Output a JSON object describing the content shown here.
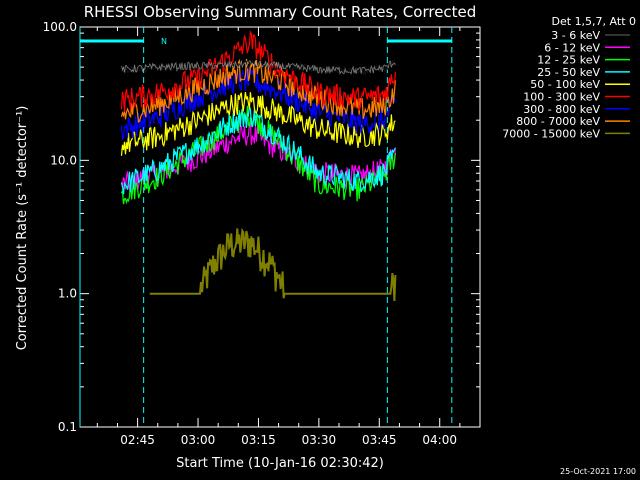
{
  "page": {
    "title": "RHESSI Observing Summary Count Rates, Corrected",
    "xlabel": "Start Time (10-Jan-16 02:30:42)",
    "ylabel": "Corrected Count Rate (s⁻¹ detector⁻¹)",
    "footer_timestamp": "25-Oct-2021 17:00",
    "marker_label": "N",
    "legend_header": "Det 1,5,7, Att 0"
  },
  "chart_data": {
    "type": "line",
    "title": "RHESSI Observing Summary Count Rates, Corrected",
    "xlabel": "Start Time (10-Jan-16 02:30:42)",
    "ylabel": "Corrected Count Rate (s⁻¹ detector⁻¹)",
    "y_scale": "log",
    "ylim": [
      0.1,
      100.0
    ],
    "y_ticks": [
      "0.1",
      "1.0",
      "10.0",
      "100.0"
    ],
    "xlim": [
      "02:30:42",
      "04:10"
    ],
    "x_ticks": [
      "02:45",
      "03:00",
      "03:15",
      "03:30",
      "03:45",
      "04:00"
    ],
    "grid": false,
    "legend_position": "right",
    "legend_header": "Det 1,5,7, Att 0",
    "background_color": "#000000",
    "night_intervals": [
      [
        "02:30:42",
        "02:46:30"
      ],
      [
        "03:47",
        "04:03"
      ]
    ],
    "night_bar_color": "#00ffff",
    "data_start": "02:41",
    "data_end": "03:49",
    "series": [
      {
        "name": "3 - 6 keV",
        "color": "#000000",
        "x": [
          "02:41",
          "02:50",
          "03:00",
          "03:10",
          "03:13",
          "03:20",
          "03:30",
          "03:40",
          "03:46",
          "03:49"
        ],
        "y": [
          48,
          50,
          51,
          52,
          53,
          51,
          48,
          47,
          49,
          55
        ]
      },
      {
        "name": "6 - 12 keV",
        "color": "#ff00ff",
        "x": [
          "02:41",
          "02:50",
          "03:00",
          "03:08",
          "03:13",
          "03:20",
          "03:30",
          "03:40",
          "03:46",
          "03:49"
        ],
        "y": [
          6.5,
          8.0,
          10.5,
          14.0,
          16.0,
          12.0,
          8.0,
          7.5,
          8.5,
          12.0
        ]
      },
      {
        "name": "12 - 25 keV",
        "color": "#00ff00",
        "x": [
          "02:41",
          "02:50",
          "03:00",
          "03:08",
          "03:13",
          "03:20",
          "03:30",
          "03:40",
          "03:46",
          "03:49"
        ],
        "y": [
          5.5,
          7.5,
          12.0,
          18.0,
          22.0,
          14.0,
          6.5,
          6.0,
          7.5,
          11.0
        ]
      },
      {
        "name": "25 - 50 keV",
        "color": "#00ffff",
        "x": [
          "02:41",
          "02:50",
          "03:00",
          "03:08",
          "03:13",
          "03:20",
          "03:30",
          "03:40",
          "03:46",
          "03:49"
        ],
        "y": [
          6.5,
          8.5,
          13.0,
          19.0,
          22.0,
          15.0,
          8.0,
          7.0,
          8.0,
          11.0
        ]
      },
      {
        "name": "50 - 100 keV",
        "color": "#ffff00",
        "x": [
          "02:41",
          "02:50",
          "03:00",
          "03:08",
          "03:13",
          "03:20",
          "03:30",
          "03:40",
          "03:46",
          "03:49"
        ],
        "y": [
          13,
          15,
          20,
          26,
          28,
          23,
          17,
          15,
          16,
          20
        ]
      },
      {
        "name": "100 - 300 keV",
        "color": "#ff0000",
        "x": [
          "02:41",
          "02:50",
          "03:00",
          "03:08",
          "03:13",
          "03:20",
          "03:30",
          "03:40",
          "03:46",
          "03:49"
        ],
        "y": [
          28,
          32,
          42,
          60,
          78,
          48,
          32,
          29,
          31,
          45
        ]
      },
      {
        "name": "300 - 800 keV",
        "color": "#0000ff",
        "x": [
          "02:41",
          "02:50",
          "03:00",
          "03:08",
          "03:13",
          "03:20",
          "03:30",
          "03:40",
          "03:46",
          "03:49"
        ],
        "y": [
          17,
          21,
          30,
          38,
          40,
          33,
          23,
          19,
          20,
          27
        ]
      },
      {
        "name": "800 - 7000 keV",
        "color": "#ff8000",
        "x": [
          "02:41",
          "02:50",
          "03:00",
          "03:08",
          "03:13",
          "03:20",
          "03:30",
          "03:40",
          "03:46",
          "03:49"
        ],
        "y": [
          22,
          26,
          35,
          45,
          48,
          40,
          29,
          24,
          25,
          34
        ]
      },
      {
        "name": "7000 - 15000 keV",
        "color": "#808000",
        "x": [
          "02:48",
          "02:55",
          "03:00",
          "03:04",
          "03:08",
          "03:13",
          "03:18",
          "03:22",
          "03:26",
          "03:32",
          "03:40",
          "03:46",
          "03:49"
        ],
        "y": [
          1.0,
          1.0,
          1.2,
          2.0,
          2.8,
          2.9,
          2.0,
          1.2,
          1.0,
          1.0,
          1.0,
          1.0,
          1.5
        ]
      }
    ]
  }
}
